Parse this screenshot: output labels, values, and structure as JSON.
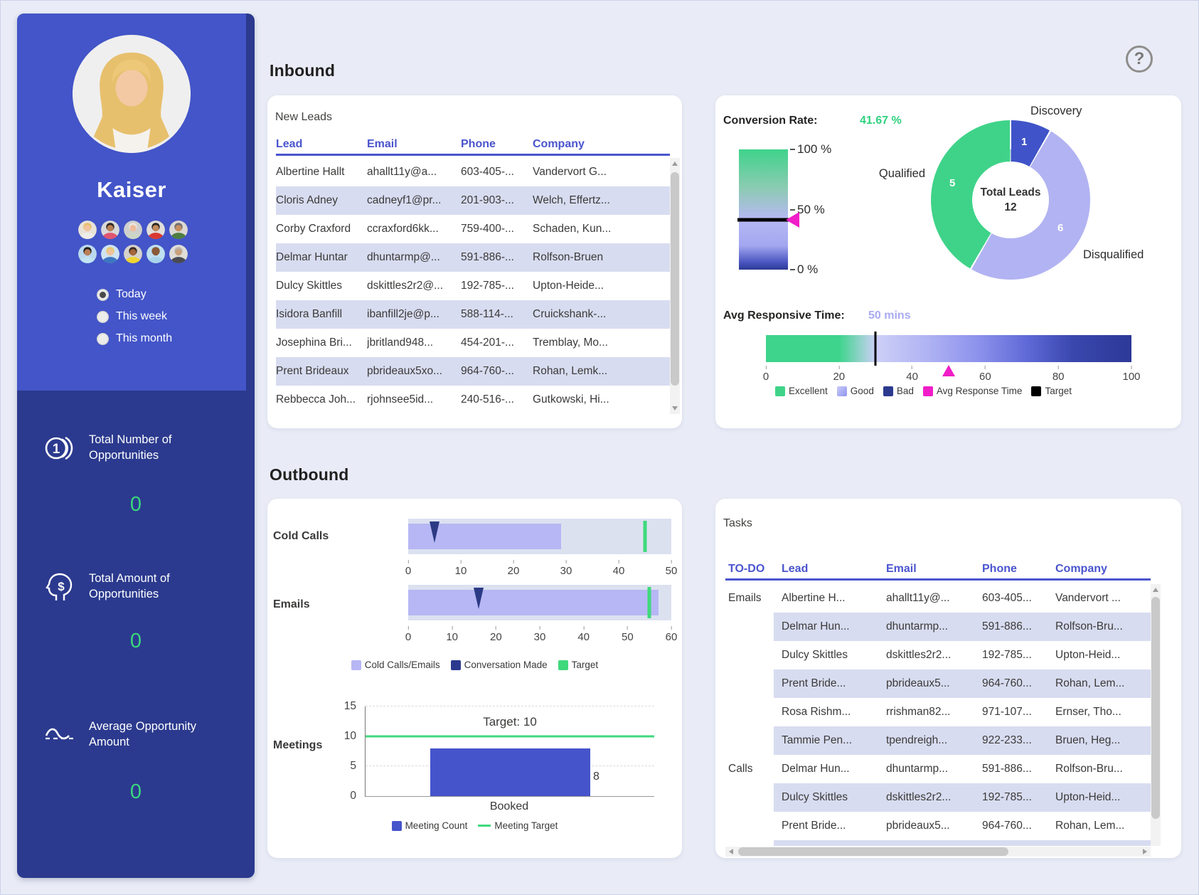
{
  "sidebar": {
    "user_name": "Kaiser",
    "filters": [
      {
        "label": "Today",
        "selected": true
      },
      {
        "label": "This week",
        "selected": false
      },
      {
        "label": "This month",
        "selected": false
      }
    ],
    "team_avatars": [
      {
        "bg": "#e9e2d8",
        "hair": "#e5c069",
        "skin": "#f2c49e",
        "shirt": "#efece7"
      },
      {
        "bg": "#d9d9d9",
        "hair": "#2e2620",
        "skin": "#b97f56",
        "shirt": "#e05570"
      },
      {
        "bg": "#cfcfcf",
        "hair": "#e9e6e1",
        "skin": "#edbd9a",
        "shirt": "#cdd6c6"
      },
      {
        "bg": "#e2dfda",
        "hair": "#2b2420",
        "skin": "#c08a5e",
        "shirt": "#d83a30"
      },
      {
        "bg": "#dcd8d2",
        "hair": "#6e6e6e",
        "skin": "#c68f62",
        "shirt": "#4d7d40"
      },
      {
        "bg": "#bcd9ef",
        "hair": "#221c19",
        "skin": "#b97f56",
        "shirt": "#c2e4f2"
      },
      {
        "bg": "#cfe4f2",
        "hair": "#e8c96f",
        "skin": "#f0c29c",
        "shirt": "#3d76c2"
      },
      {
        "bg": "#d6d2cc",
        "hair": "#3a2c24",
        "skin": "#a4653c",
        "shirt": "#eed431"
      },
      {
        "bg": "#bfe0f0",
        "hair": "#8a5a38",
        "skin": "#8a5a38",
        "shirt": "#a9d4ea"
      },
      {
        "bg": "#e0ddd8",
        "hair": "#b9b4ac",
        "skin": "#caa07c",
        "shirt": "#4a4a50"
      }
    ],
    "stats": [
      {
        "icon": "one-coin-icon",
        "label": "Total Number of Opportunities",
        "value": "0"
      },
      {
        "icon": "dollar-head-icon",
        "label": "Total Amount of Opportunities",
        "value": "0"
      },
      {
        "icon": "average-wave-icon",
        "label": "Average Opportunity Amount",
        "value": "0"
      }
    ]
  },
  "header": {
    "inbound_title": "Inbound",
    "outbound_title": "Outbound",
    "help_icon": "?"
  },
  "new_leads": {
    "title": "New Leads",
    "columns": [
      "Lead",
      "Email",
      "Phone",
      "Company"
    ],
    "rows": [
      [
        "Albertine Hallt",
        "ahallt11y@a...",
        "603-405-...",
        "Vandervort G..."
      ],
      [
        "Cloris Adney",
        "cadneyf1@pr...",
        "201-903-...",
        "Welch, Effertz..."
      ],
      [
        "Corby Craxford",
        "ccraxford6kk...",
        "759-400-...",
        "Schaden, Kun..."
      ],
      [
        "Delmar Huntar",
        "dhuntarmp@...",
        "591-886-...",
        "Rolfson-Bruen"
      ],
      [
        "Dulcy Skittles",
        "dskittles2r2@...",
        "192-785-...",
        "Upton-Heide..."
      ],
      [
        "Isidora Banfill",
        "ibanfill2je@p...",
        "588-114-...",
        "Cruickshank-..."
      ],
      [
        "Josephina Bri...",
        "jbritland948...",
        "454-201-...",
        "Tremblay, Mo..."
      ],
      [
        "Prent Brideaux",
        "pbrideaux5xo...",
        "964-760-...",
        "Rohan, Lemk..."
      ],
      [
        "Rebbecca Joh...",
        "rjohnsee5id...",
        "240-516-...",
        "Gutkowski, Hi..."
      ]
    ]
  },
  "tasks": {
    "title": "Tasks",
    "columns": [
      "TO-DO",
      "Lead",
      "Email",
      "Phone",
      "Company"
    ],
    "rows": [
      {
        "todo": "Emails",
        "cells": [
          "Albertine H...",
          "ahallt11y@...",
          "603-405...",
          "Vandervort ..."
        ]
      },
      {
        "todo": "",
        "cells": [
          "Delmar Hun...",
          "dhuntarmp...",
          "591-886...",
          "Rolfson-Bru..."
        ]
      },
      {
        "todo": "",
        "cells": [
          "Dulcy Skittles",
          "dskittles2r2...",
          "192-785...",
          "Upton-Heid..."
        ]
      },
      {
        "todo": "",
        "cells": [
          "Prent Bride...",
          "pbrideaux5...",
          "964-760...",
          "Rohan, Lem..."
        ]
      },
      {
        "todo": "",
        "cells": [
          "Rosa Rishm...",
          "rrishman82...",
          "971-107...",
          "Ernser, Tho..."
        ]
      },
      {
        "todo": "",
        "cells": [
          "Tammie Pen...",
          "tpendreigh...",
          "922-233...",
          "Bruen, Heg..."
        ]
      },
      {
        "todo": "Calls",
        "cells": [
          "Delmar Hun...",
          "dhuntarmp...",
          "591-886...",
          "Rolfson-Bru..."
        ]
      },
      {
        "todo": "",
        "cells": [
          "Dulcy Skittles",
          "dskittles2r2...",
          "192-785...",
          "Upton-Heid..."
        ]
      },
      {
        "todo": "",
        "cells": [
          "Prent Bride...",
          "pbrideaux5...",
          "964-760...",
          "Rohan, Lem..."
        ]
      }
    ]
  },
  "outbound": {
    "legend": [
      {
        "label": "Cold Calls/Emails",
        "color": "#b6b7f4"
      },
      {
        "label": "Conversation Made",
        "color": "#2c3a8e"
      },
      {
        "label": "Target",
        "color": "#3fd97d"
      }
    ]
  },
  "colors": {
    "accent_blue": "#4355c8",
    "dark_navy": "#2b3a8e",
    "green": "#2fd17f",
    "light_purple": "#b2b3f2",
    "magenta": "#f01dc8",
    "table_header": "#4a54cd"
  },
  "chart_data": [
    {
      "id": "conversion_gauge",
      "type": "gauge",
      "title": "Conversion Rate:",
      "value": 41.67,
      "value_label": "41.67 %",
      "ylim": [
        0,
        100
      ],
      "ticks": [
        "100 %",
        "50 %",
        "0 %"
      ]
    },
    {
      "id": "leads_donut",
      "type": "pie",
      "center_label": "Total Leads",
      "center_value": "12",
      "slices": [
        {
          "label": "Discovery",
          "value": 1,
          "color": "#4053c8"
        },
        {
          "label": "Disqualified",
          "value": 6,
          "color": "#b2b3f2"
        },
        {
          "label": "Qualified",
          "value": 5,
          "color": "#3fd389"
        }
      ]
    },
    {
      "id": "avg_response",
      "type": "bullet",
      "title": "Avg Responsive Time:",
      "value": 50,
      "value_label": "50 mins",
      "target": 30,
      "xlim": [
        0,
        100
      ],
      "ticks": [
        0,
        20,
        40,
        60,
        80,
        100
      ],
      "legend": [
        {
          "label": "Excellent",
          "color": "#3fd389"
        },
        {
          "label": "Good",
          "color": "#b2b3f2"
        },
        {
          "label": "Bad",
          "color": "#2c3a8e"
        },
        {
          "label": "Avg Response Time",
          "color": "#f01dc8"
        },
        {
          "label": "Target",
          "color": "#000000"
        }
      ]
    },
    {
      "id": "cold_calls",
      "type": "bullet",
      "label": "Cold Calls",
      "value": 29,
      "marker": 5,
      "target": 45,
      "xlim": [
        0,
        50
      ],
      "ticks": [
        0,
        10,
        20,
        30,
        40,
        50
      ]
    },
    {
      "id": "emails",
      "type": "bullet",
      "label": "Emails",
      "value": 57,
      "marker": 16,
      "target": 55,
      "xlim": [
        0,
        60
      ],
      "ticks": [
        0,
        10,
        20,
        30,
        40,
        50,
        60
      ]
    },
    {
      "id": "meetings",
      "type": "bar",
      "label": "Meetings",
      "categories": [
        "Booked"
      ],
      "values": [
        8
      ],
      "bar_label": "8",
      "target": 10,
      "target_label": "Target: 10",
      "ylim": [
        0,
        15
      ],
      "yticks": [
        0,
        5,
        10,
        15
      ],
      "legend": [
        {
          "label": "Meeting Count",
          "color": "#4554cb",
          "shape": "square"
        },
        {
          "label": "Meeting Target",
          "color": "#3fd97d",
          "shape": "line"
        }
      ]
    }
  ]
}
